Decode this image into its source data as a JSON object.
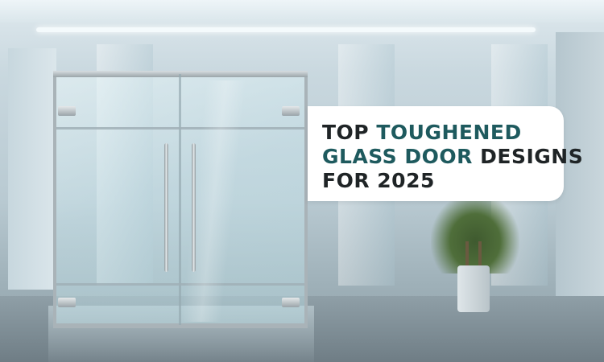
{
  "headline": {
    "line1_plain": "TOP ",
    "line1_accent": "TOUGHENED",
    "line2_accent": "GLASS DOOR",
    "line2_plain": " DESIGNS",
    "line3_plain": "FOR 2025"
  },
  "colors": {
    "accent": "#1e5a5e",
    "text": "#1f2426",
    "card_background": "#ffffff"
  },
  "scene": {
    "subject": "glass-double-door",
    "background": "office-interior-with-plant"
  }
}
